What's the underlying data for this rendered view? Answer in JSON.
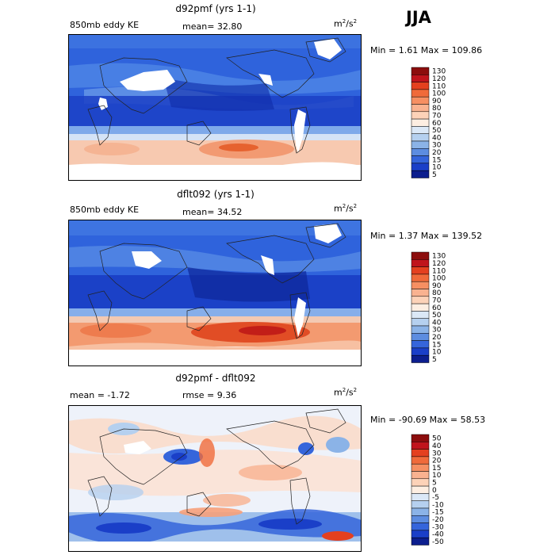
{
  "season": "JJA",
  "panels": [
    {
      "title": "d92pmf (yrs 1-1)",
      "left": "850mb eddy KE",
      "stat": "mean=   32.80",
      "unit_base": "m",
      "unit_exp1": "2",
      "unit_mid": "/s",
      "unit_exp2": "2",
      "minmax": "Min =    1.61 Max = 109.86",
      "levels": [
        "130",
        "120",
        "110",
        "100",
        "90",
        "80",
        "70",
        "60",
        "50",
        "40",
        "30",
        "20",
        "15",
        "10",
        "5"
      ],
      "colors": [
        "#8c0d0d",
        "#c0141c",
        "#e4401f",
        "#f06a3a",
        "#f68f62",
        "#f9b290",
        "#fcd2b8",
        "#fdeee2",
        "#dbe8f7",
        "#b5d0ef",
        "#8bb3e7",
        "#5d8de0",
        "#3565db",
        "#1a3fc8",
        "#0c1e8e"
      ]
    },
    {
      "title": "dflt092 (yrs 1-1)",
      "left": "850mb eddy KE",
      "stat": "mean=   34.52",
      "unit_base": "m",
      "unit_exp1": "2",
      "unit_mid": "/s",
      "unit_exp2": "2",
      "minmax": "Min =    1.37 Max = 139.52",
      "levels": [
        "130",
        "120",
        "110",
        "100",
        "90",
        "80",
        "70",
        "60",
        "50",
        "40",
        "30",
        "20",
        "15",
        "10",
        "5"
      ],
      "colors": [
        "#8c0d0d",
        "#c0141c",
        "#e4401f",
        "#f06a3a",
        "#f68f62",
        "#f9b290",
        "#fcd2b8",
        "#fdeee2",
        "#dbe8f7",
        "#b5d0ef",
        "#8bb3e7",
        "#5d8de0",
        "#3565db",
        "#1a3fc8",
        "#0c1e8e"
      ]
    },
    {
      "title": "d92pmf - dflt092",
      "left": "mean =   -1.72",
      "stat": "rmse =    9.36",
      "unit_base": "m",
      "unit_exp1": "2",
      "unit_mid": "/s",
      "unit_exp2": "2",
      "minmax": "Min = -90.69 Max =   58.53",
      "levels": [
        "50",
        "40",
        "30",
        "20",
        "15",
        "10",
        "5",
        "0",
        "-5",
        "-10",
        "-15",
        "-20",
        "-30",
        "-40",
        "-50"
      ],
      "colors": [
        "#8c0d0d",
        "#c0141c",
        "#e4401f",
        "#f06a3a",
        "#f68f62",
        "#f9b290",
        "#fcd2b8",
        "#fdeee2",
        "#dbe8f7",
        "#b5d0ef",
        "#8bb3e7",
        "#5d8de0",
        "#3565db",
        "#1a3fc8",
        "#0c1e8e"
      ]
    }
  ]
}
